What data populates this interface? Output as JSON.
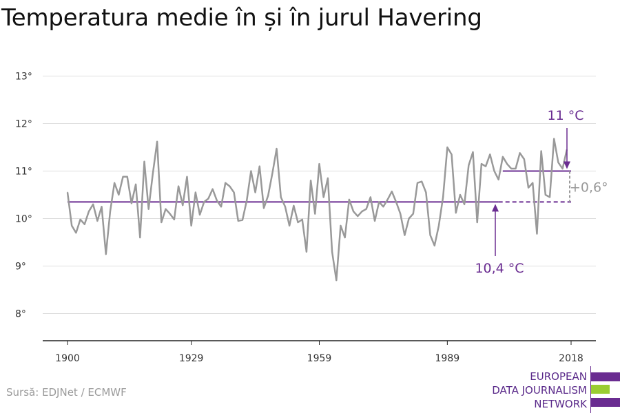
{
  "title": "Temperatura medie în și în jurul Havering",
  "source": "Sursă: EDJNet / ECMWF",
  "logo": {
    "lines": [
      "EUROPEAN",
      "DATA JOURNALISM",
      "NETWORK"
    ],
    "colors": {
      "purple": "#6a2c91",
      "green": "#9acd32"
    }
  },
  "colors": {
    "series": "#999999",
    "baseline": "#6a2c91",
    "grid": "#dddddd",
    "axis": "#222222",
    "annotation_purple": "#6a2c91",
    "annotation_gray": "#999999"
  },
  "chart_data": {
    "type": "line",
    "title": "Temperatura medie în și în jurul Havering",
    "xlabel": "",
    "ylabel": "",
    "xlim": [
      1900,
      2018
    ],
    "ylim": [
      7.6,
      13.4
    ],
    "x_ticks": [
      1900,
      1929,
      1959,
      1989,
      2018
    ],
    "y_ticks": [
      8,
      9,
      10,
      11,
      12,
      13
    ],
    "y_tick_labels": [
      "8°",
      "9°",
      "10°",
      "11°",
      "12°",
      "13°"
    ],
    "grid": true,
    "series": [
      {
        "x_start": 1900,
        "values": [
          10.55,
          9.85,
          9.7,
          9.98,
          9.88,
          10.15,
          10.3,
          9.95,
          10.25,
          9.25,
          10.15,
          10.75,
          10.5,
          10.88,
          10.88,
          10.32,
          10.72,
          9.6,
          11.2,
          10.2,
          10.95,
          11.62,
          9.92,
          10.2,
          10.1,
          9.98,
          10.68,
          10.28,
          10.88,
          9.85,
          10.55,
          10.08,
          10.35,
          10.42,
          10.62,
          10.38,
          10.25,
          10.75,
          10.68,
          10.55,
          9.95,
          9.97,
          10.38,
          11.0,
          10.55,
          11.1,
          10.22,
          10.48,
          10.95,
          11.47,
          10.45,
          10.25,
          9.85,
          10.27,
          9.92,
          9.98,
          9.3,
          10.8,
          10.1,
          11.15,
          10.45,
          10.85,
          9.3,
          8.7,
          9.85,
          9.6,
          10.4,
          10.15,
          10.05,
          10.15,
          10.2,
          10.45,
          9.95,
          10.35,
          10.25,
          10.4,
          10.57,
          10.35,
          10.1,
          9.65,
          10.0,
          10.1,
          10.75,
          10.78,
          10.55,
          9.65,
          9.43,
          9.85,
          10.45,
          11.5,
          11.35,
          10.12,
          10.5,
          10.3,
          11.12,
          11.4,
          9.92,
          11.15,
          11.1,
          11.35,
          11.0,
          10.82,
          11.3,
          11.15,
          11.05,
          11.05,
          11.38,
          11.25,
          10.65,
          10.75,
          9.68,
          11.42,
          10.5,
          10.45,
          11.68,
          11.18,
          11.05,
          11.45
        ]
      }
    ],
    "baseline": {
      "value": 10.35,
      "label": "10,4 °C",
      "from": 1900,
      "to": 2018,
      "dashed_from": 2001
    },
    "recent": {
      "value": 11.0,
      "label": "11 °C",
      "from": 2002,
      "to": 2018
    },
    "difference_label": "+0,6°"
  }
}
